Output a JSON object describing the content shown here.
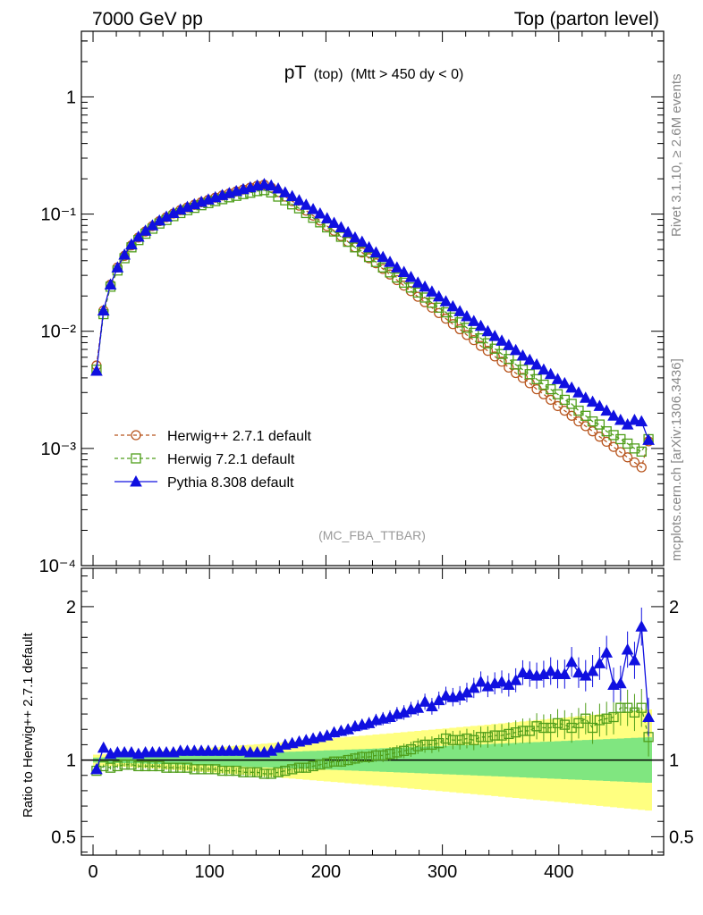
{
  "chart_data": {
    "type": "line",
    "header_left": "7000 GeV pp",
    "header_right": "Top (parton level)",
    "title_main": "pT",
    "title_sub": "(top)",
    "title_cut": "(Mtt > 450 dy < 0)",
    "analysis_tag": "(MC_FBA_TTBAR)",
    "side_text_top": "Rivet 3.1.10, ≥ 2.6M events",
    "side_text_bottom": "mcplots.cern.ch [arXiv:1306.3436]",
    "ratio_ylabel": "Ratio to Herwig++ 2.7.1 default",
    "x_range": [
      -10,
      490
    ],
    "x_ticks": [
      0,
      100,
      200,
      300,
      400
    ],
    "main_y_log_range": [
      -4,
      0.56
    ],
    "main_y_ticks": [
      {
        "exp": 0,
        "label": "1"
      },
      {
        "exp": -1,
        "label": "10⁻¹"
      },
      {
        "exp": -2,
        "label": "10⁻²"
      },
      {
        "exp": -3,
        "label": "10⁻³"
      },
      {
        "exp": -4,
        "label": "10⁻⁴"
      }
    ],
    "ratio_y_range": [
      0.38,
      2.25
    ],
    "ratio_y_ticks": [
      {
        "v": 0.5,
        "label": "0.5"
      },
      {
        "v": 1,
        "label": "1"
      },
      {
        "v": 2,
        "label": "2"
      }
    ],
    "series": [
      {
        "name": "Herwig++ 2.7.1 default",
        "color": "#b8561f",
        "marker": "circle",
        "dashed": true,
        "x": [
          3,
          9,
          15,
          21,
          27,
          33,
          39,
          45,
          51,
          57,
          63,
          69,
          75,
          81,
          87,
          93,
          99,
          105,
          111,
          117,
          123,
          129,
          135,
          141,
          147,
          153,
          159,
          165,
          171,
          177,
          183,
          189,
          195,
          201,
          207,
          213,
          219,
          225,
          231,
          237,
          243,
          249,
          255,
          261,
          267,
          273,
          279,
          285,
          291,
          297,
          303,
          309,
          315,
          321,
          327,
          333,
          339,
          345,
          351,
          357,
          363,
          369,
          375,
          381,
          387,
          393,
          399,
          405,
          411,
          417,
          423,
          429,
          435,
          441,
          447,
          453,
          459,
          465,
          471,
          477
        ],
        "y": [
          0.0051,
          0.015,
          0.025,
          0.035,
          0.044,
          0.054,
          0.063,
          0.071,
          0.079,
          0.087,
          0.094,
          0.101,
          0.108,
          0.114,
          0.12,
          0.126,
          0.132,
          0.138,
          0.144,
          0.15,
          0.156,
          0.162,
          0.168,
          0.174,
          0.178,
          0.168,
          0.154,
          0.141,
          0.129,
          0.118,
          0.107,
          0.097,
          0.088,
          0.079,
          0.072,
          0.065,
          0.058,
          0.052,
          0.047,
          0.042,
          0.038,
          0.034,
          0.0305,
          0.0273,
          0.0245,
          0.022,
          0.0197,
          0.0177,
          0.0159,
          0.0143,
          0.0128,
          0.0115,
          0.0104,
          0.0093,
          0.0084,
          0.0075,
          0.0068,
          0.0061,
          0.0055,
          0.0049,
          0.0044,
          0.004,
          0.0036,
          0.0032,
          0.0029,
          0.0026,
          0.0023,
          0.0021,
          0.0019,
          0.0017,
          0.00155,
          0.0014,
          0.00126,
          0.00114,
          0.00103,
          0.00093,
          0.00084,
          0.00076,
          0.00069,
          0.00115
        ],
        "ratio": [
          1,
          1,
          1,
          1,
          1,
          1,
          1,
          1,
          1,
          1,
          1,
          1,
          1,
          1,
          1,
          1,
          1,
          1,
          1,
          1,
          1,
          1,
          1,
          1,
          1,
          1,
          1,
          1,
          1,
          1,
          1,
          1,
          1,
          1,
          1,
          1,
          1,
          1,
          1,
          1,
          1,
          1,
          1,
          1,
          1,
          1,
          1,
          1,
          1,
          1,
          1,
          1,
          1,
          1,
          1,
          1,
          1,
          1,
          1,
          1,
          1,
          1,
          1,
          1,
          1,
          1,
          1,
          1,
          1,
          1,
          1,
          1,
          1,
          1,
          1,
          1,
          1,
          1,
          1,
          1
        ]
      },
      {
        "name": "Herwig 7.2.1 default",
        "color": "#4f9e1a",
        "marker": "square",
        "dashed": true,
        "x": [
          3,
          9,
          15,
          21,
          27,
          33,
          39,
          45,
          51,
          57,
          63,
          69,
          75,
          81,
          87,
          93,
          99,
          105,
          111,
          117,
          123,
          129,
          135,
          141,
          147,
          153,
          159,
          165,
          171,
          177,
          183,
          189,
          195,
          201,
          207,
          213,
          219,
          225,
          231,
          237,
          243,
          249,
          255,
          261,
          267,
          273,
          279,
          285,
          291,
          297,
          303,
          309,
          315,
          321,
          327,
          333,
          339,
          345,
          351,
          357,
          363,
          369,
          375,
          381,
          387,
          393,
          399,
          405,
          411,
          417,
          423,
          429,
          435,
          441,
          447,
          453,
          459,
          465,
          471,
          477
        ],
        "y": [
          0.0047,
          0.014,
          0.024,
          0.033,
          0.042,
          0.052,
          0.06,
          0.068,
          0.075,
          0.083,
          0.089,
          0.096,
          0.102,
          0.108,
          0.113,
          0.119,
          0.124,
          0.129,
          0.134,
          0.139,
          0.143,
          0.148,
          0.152,
          0.157,
          0.16,
          0.153,
          0.141,
          0.131,
          0.121,
          0.112,
          0.102,
          0.093,
          0.085,
          0.077,
          0.071,
          0.064,
          0.058,
          0.052,
          0.048,
          0.043,
          0.039,
          0.035,
          0.0318,
          0.0287,
          0.026,
          0.0236,
          0.0214,
          0.0194,
          0.0175,
          0.0159,
          0.0145,
          0.0131,
          0.0119,
          0.0107,
          0.0097,
          0.0087,
          0.0079,
          0.0071,
          0.0064,
          0.0058,
          0.0052,
          0.0047,
          0.0043,
          0.0039,
          0.0035,
          0.0032,
          0.0029,
          0.0026,
          0.0024,
          0.0021,
          0.0019,
          0.0017,
          0.0016,
          0.0014,
          0.0013,
          0.0012,
          0.0011,
          0.001,
          0.00094,
          0.0012
        ],
        "ratio": [
          0.93,
          0.96,
          0.95,
          0.96,
          0.97,
          0.97,
          0.96,
          0.96,
          0.96,
          0.96,
          0.95,
          0.95,
          0.95,
          0.95,
          0.94,
          0.94,
          0.94,
          0.94,
          0.93,
          0.93,
          0.93,
          0.92,
          0.92,
          0.92,
          0.91,
          0.91,
          0.92,
          0.93,
          0.94,
          0.95,
          0.95,
          0.96,
          0.97,
          0.98,
          0.99,
          0.99,
          1,
          1.01,
          1.02,
          1.02,
          1.03,
          1.03,
          1.04,
          1.05,
          1.06,
          1.07,
          1.09,
          1.1,
          1.1,
          1.11,
          1.14,
          1.13,
          1.13,
          1.14,
          1.13,
          1.15,
          1.15,
          1.16,
          1.16,
          1.17,
          1.18,
          1.19,
          1.19,
          1.22,
          1.21,
          1.21,
          1.24,
          1.23,
          1.21,
          1.24,
          1.27,
          1.21,
          1.26,
          1.27,
          1.28,
          1.34,
          1.34,
          1.31,
          1.34,
          1.15
        ]
      },
      {
        "name": "Pythia 8.308 default",
        "color": "#1010e0",
        "marker": "triangle",
        "dashed": false,
        "x": [
          3,
          9,
          15,
          21,
          27,
          33,
          39,
          45,
          51,
          57,
          63,
          69,
          75,
          81,
          87,
          93,
          99,
          105,
          111,
          117,
          123,
          129,
          135,
          141,
          147,
          153,
          159,
          165,
          171,
          177,
          183,
          189,
          195,
          201,
          207,
          213,
          219,
          225,
          231,
          237,
          243,
          249,
          255,
          261,
          267,
          273,
          279,
          285,
          291,
          297,
          303,
          309,
          315,
          321,
          327,
          333,
          339,
          345,
          351,
          357,
          363,
          369,
          375,
          381,
          387,
          393,
          399,
          405,
          411,
          417,
          423,
          429,
          435,
          441,
          447,
          453,
          459,
          465,
          471,
          477
        ],
        "y": [
          0.0046,
          0.015,
          0.025,
          0.035,
          0.045,
          0.055,
          0.064,
          0.072,
          0.08,
          0.088,
          0.095,
          0.102,
          0.109,
          0.115,
          0.121,
          0.127,
          0.133,
          0.139,
          0.145,
          0.151,
          0.157,
          0.163,
          0.169,
          0.175,
          0.18,
          0.175,
          0.165,
          0.153,
          0.142,
          0.131,
          0.12,
          0.11,
          0.101,
          0.092,
          0.084,
          0.077,
          0.07,
          0.063,
          0.058,
          0.052,
          0.047,
          0.043,
          0.039,
          0.035,
          0.032,
          0.029,
          0.026,
          0.024,
          0.0218,
          0.0198,
          0.018,
          0.0163,
          0.0148,
          0.0134,
          0.0122,
          0.0111,
          0.01,
          0.0091,
          0.0083,
          0.0076,
          0.0069,
          0.0062,
          0.0057,
          0.0052,
          0.0047,
          0.0043,
          0.0039,
          0.0036,
          0.0033,
          0.003,
          0.0027,
          0.0025,
          0.0023,
          0.0021,
          0.0019,
          0.00175,
          0.0016,
          0.00175,
          0.0017,
          0.00118
        ],
        "ratio": [
          0.94,
          1.08,
          1.04,
          1.05,
          1.05,
          1.05,
          1.04,
          1.05,
          1.05,
          1.05,
          1.05,
          1.05,
          1.06,
          1.06,
          1.06,
          1.06,
          1.06,
          1.06,
          1.06,
          1.06,
          1.06,
          1.06,
          1.05,
          1.05,
          1.05,
          1.06,
          1.08,
          1.1,
          1.11,
          1.12,
          1.13,
          1.14,
          1.15,
          1.16,
          1.18,
          1.19,
          1.2,
          1.22,
          1.23,
          1.24,
          1.26,
          1.27,
          1.28,
          1.3,
          1.31,
          1.33,
          1.34,
          1.38,
          1.35,
          1.39,
          1.42,
          1.41,
          1.42,
          1.44,
          1.47,
          1.51,
          1.48,
          1.5,
          1.51,
          1.49,
          1.52,
          1.57,
          1.56,
          1.55,
          1.56,
          1.58,
          1.56,
          1.56,
          1.64,
          1.57,
          1.55,
          1.58,
          1.63,
          1.7,
          1.49,
          1.5,
          1.72,
          1.65,
          1.87,
          1.28
        ]
      }
    ],
    "uncertainty_bands": [
      {
        "name": "stat",
        "color": "#80e680"
      },
      {
        "name": "total",
        "color": "#ffff80"
      }
    ]
  }
}
